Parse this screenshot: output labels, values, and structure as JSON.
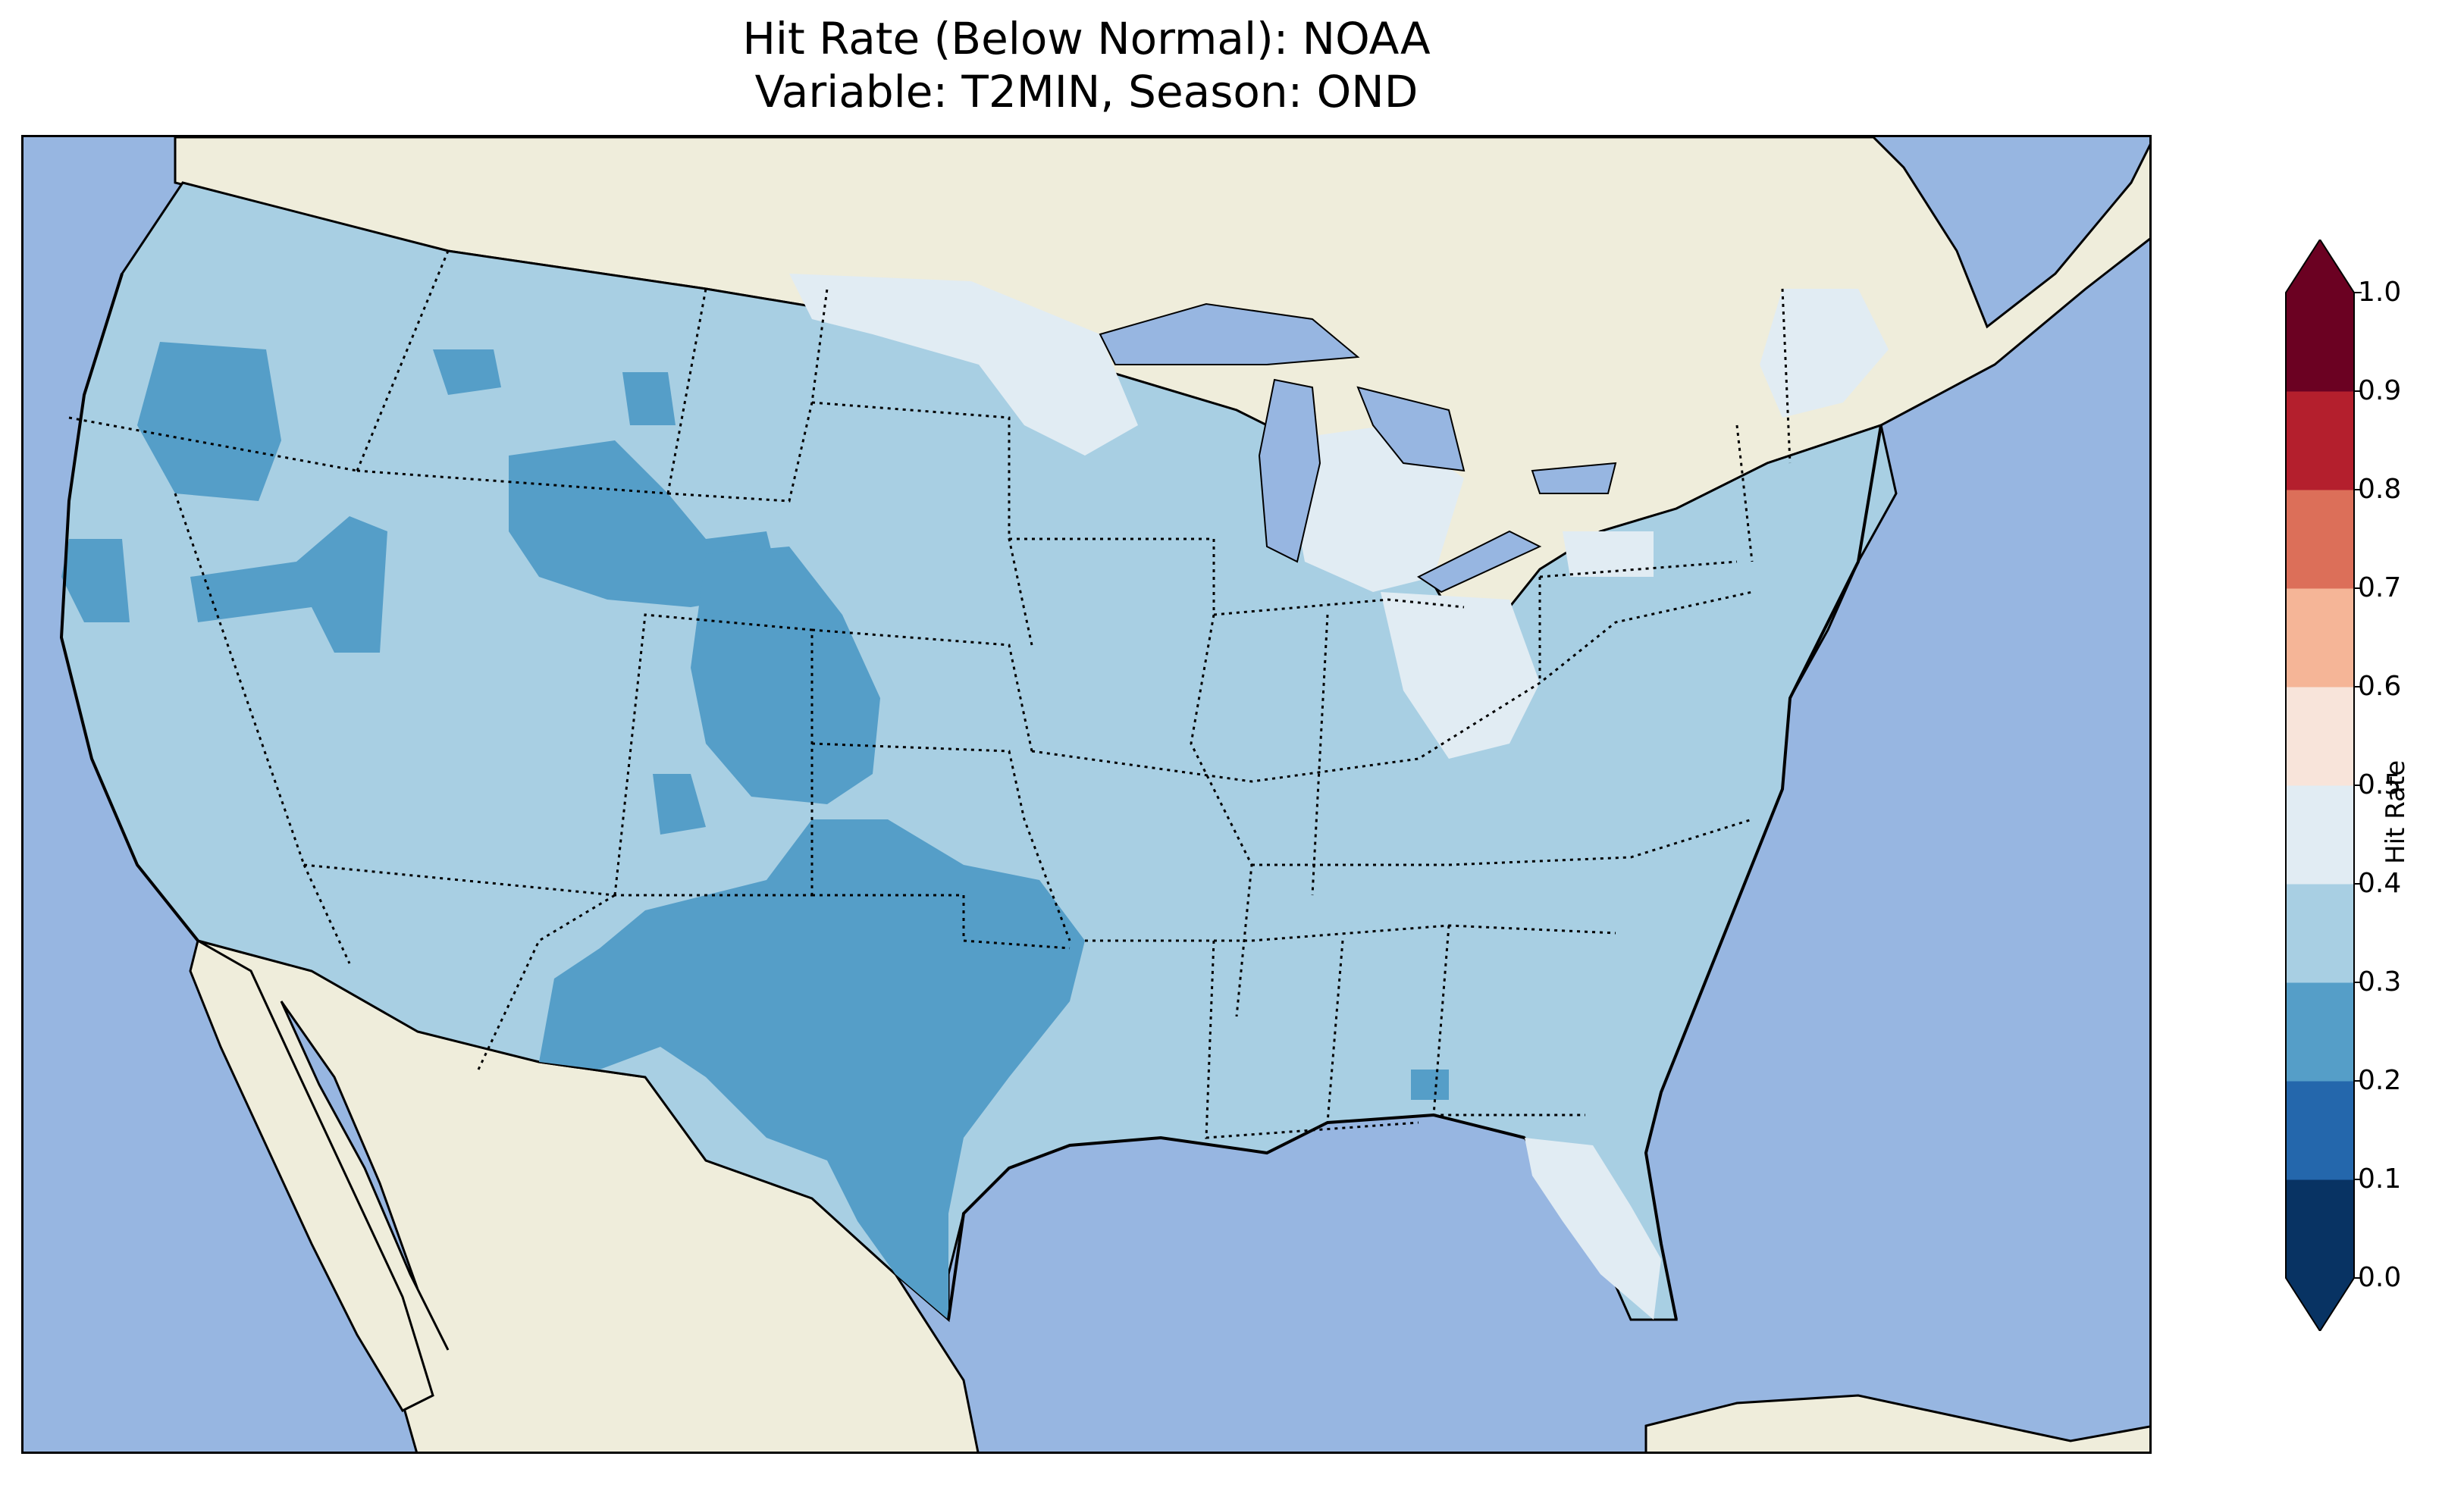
{
  "title": {
    "line1": "Hit Rate (Below Normal): NOAA",
    "line2": "Variable: T2MIN, Season: OND"
  },
  "map": {
    "projection": "Lambert conformal, CONUS",
    "ocean_color": "#97b6e1",
    "land_color": "#efeddb",
    "coastline_color": "#000000",
    "state_border_style": "dotted",
    "regions": [
      {
        "name": "West Coast / Great Basin",
        "bin": "0.3-0.4",
        "color": "#a8cfe3"
      },
      {
        "name": "Oregon interior",
        "bin": "0.2-0.3",
        "color": "#559ec8"
      },
      {
        "name": "Northern California coast",
        "bin": "0.2-0.3",
        "color": "#559ec8"
      },
      {
        "name": "Northern Nevada / Idaho",
        "bin": "0.2-0.3",
        "color": "#559ec8"
      },
      {
        "name": "Wyoming",
        "bin": "0.2-0.3",
        "color": "#559ec8"
      },
      {
        "name": "Western Nebraska / Colorado Front Range",
        "bin": "0.2-0.3",
        "color": "#559ec8"
      },
      {
        "name": "New Mexico east / Texas / Oklahoma",
        "bin": "0.2-0.3",
        "color": "#559ec8"
      },
      {
        "name": "Minnesota / Wisconsin north",
        "bin": "0.4-0.5",
        "color": "#e1ecf3"
      },
      {
        "name": "Michigan / Ohio",
        "bin": "0.4-0.5",
        "color": "#e1ecf3"
      },
      {
        "name": "Maine / New England north",
        "bin": "0.4-0.5",
        "color": "#e1ecf3"
      },
      {
        "name": "Florida peninsula",
        "bin": "0.4-0.5",
        "color": "#e1ecf3"
      },
      {
        "name": "Eastern / Southeastern US",
        "bin": "0.3-0.4",
        "color": "#a8cfe3"
      }
    ]
  },
  "colorbar": {
    "label": "Hit Rate",
    "ticks": [
      "0.0",
      "0.1",
      "0.2",
      "0.3",
      "0.4",
      "0.5",
      "0.6",
      "0.7",
      "0.8",
      "0.9",
      "1.0"
    ],
    "colors": [
      "#083363",
      "#2467ac",
      "#559ec8",
      "#a8cfe3",
      "#e1ecf3",
      "#f8e4da",
      "#f5b597",
      "#dc6f59",
      "#b41f2d",
      "#6b0122"
    ],
    "extend": "both"
  }
}
